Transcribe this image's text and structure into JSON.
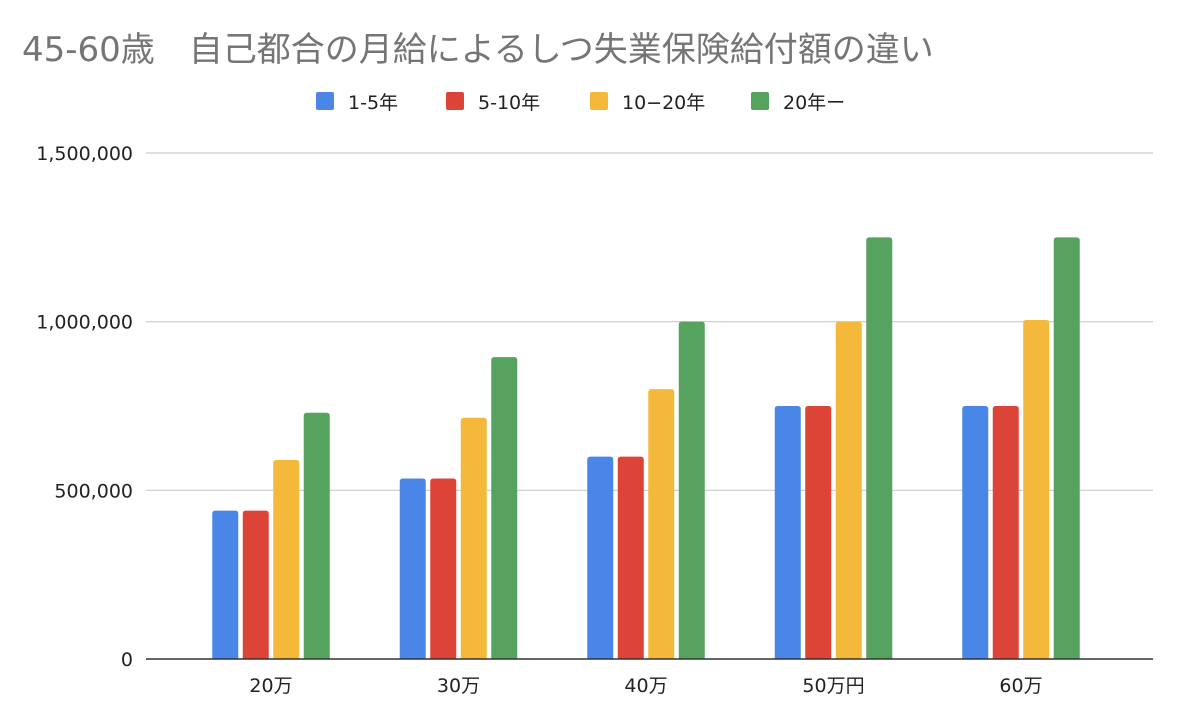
{
  "chart_data": {
    "type": "bar",
    "title": "45-60歳　自己都合の月給によるしつ失業保険給付額の違い",
    "categories": [
      "20万",
      "30万",
      "40万",
      "50万円",
      "60万"
    ],
    "series": [
      {
        "name": "1-5年",
        "color": "#4A86E8",
        "values": [
          440000,
          535000,
          600000,
          750000,
          750000
        ]
      },
      {
        "name": "5-10年",
        "color": "#DB4437",
        "values": [
          440000,
          535000,
          600000,
          750000,
          750000
        ]
      },
      {
        "name": "10−20年",
        "color": "#F4B93B",
        "values": [
          590000,
          715000,
          800000,
          1000000,
          1005000
        ]
      },
      {
        "name": "20年ー",
        "color": "#55A35F",
        "values": [
          730000,
          895000,
          1000000,
          1250000,
          1250000
        ]
      }
    ],
    "y_ticks": [
      0,
      500000,
      1000000,
      1500000
    ],
    "y_tick_labels": [
      "0",
      "500,000",
      "1,000,000",
      "1,500,000"
    ],
    "ylim": [
      0,
      1500000
    ],
    "xlabel": "",
    "ylabel": "",
    "grid": true,
    "legend_position": "top"
  }
}
